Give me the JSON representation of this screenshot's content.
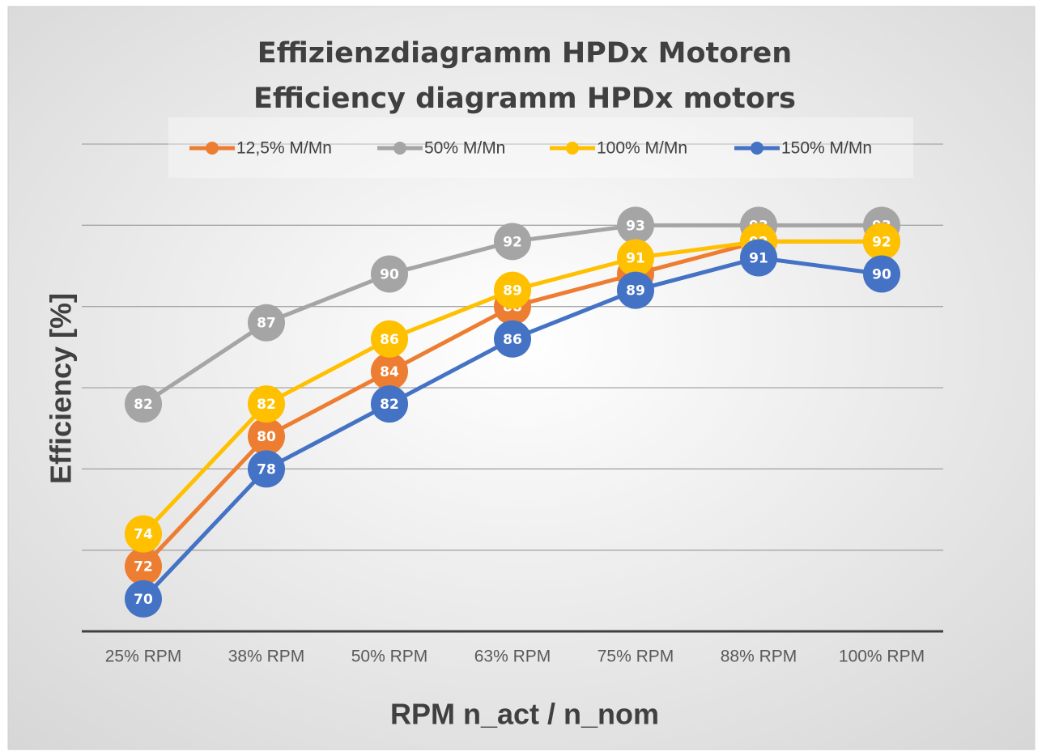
{
  "chart_data": {
    "type": "line",
    "title": "Effizienzdiagramm HPDx Motoren",
    "subtitle": "Efficiency diagramm HPDx motors",
    "x_label": "RPM n_act / n_nom",
    "y_label": "Efficiency [%]",
    "categories": [
      "25% RPM",
      "38% RPM",
      "50% RPM",
      "63% RPM",
      "75% RPM",
      "88% RPM",
      "100% RPM"
    ],
    "series": [
      {
        "name": "12,5% M/Mn",
        "color": "#ed7d31",
        "values": [
          72,
          80,
          84,
          88,
          90,
          92,
          92
        ]
      },
      {
        "name": "50% M/Mn",
        "color": "#a5a5a5",
        "values": [
          82,
          87,
          90,
          92,
          93,
          93,
          93
        ]
      },
      {
        "name": "100% M/Mn",
        "color": "#ffc000",
        "values": [
          74,
          82,
          86,
          89,
          91,
          92,
          92
        ]
      },
      {
        "name": "150% M/Mn",
        "color": "#4472c4",
        "values": [
          70,
          78,
          82,
          86,
          89,
          91,
          90
        ]
      }
    ],
    "ylim": [
      68,
      98
    ],
    "yticks": [
      68,
      73,
      78,
      83,
      88,
      93,
      98
    ],
    "grid": true,
    "legend": "top"
  }
}
